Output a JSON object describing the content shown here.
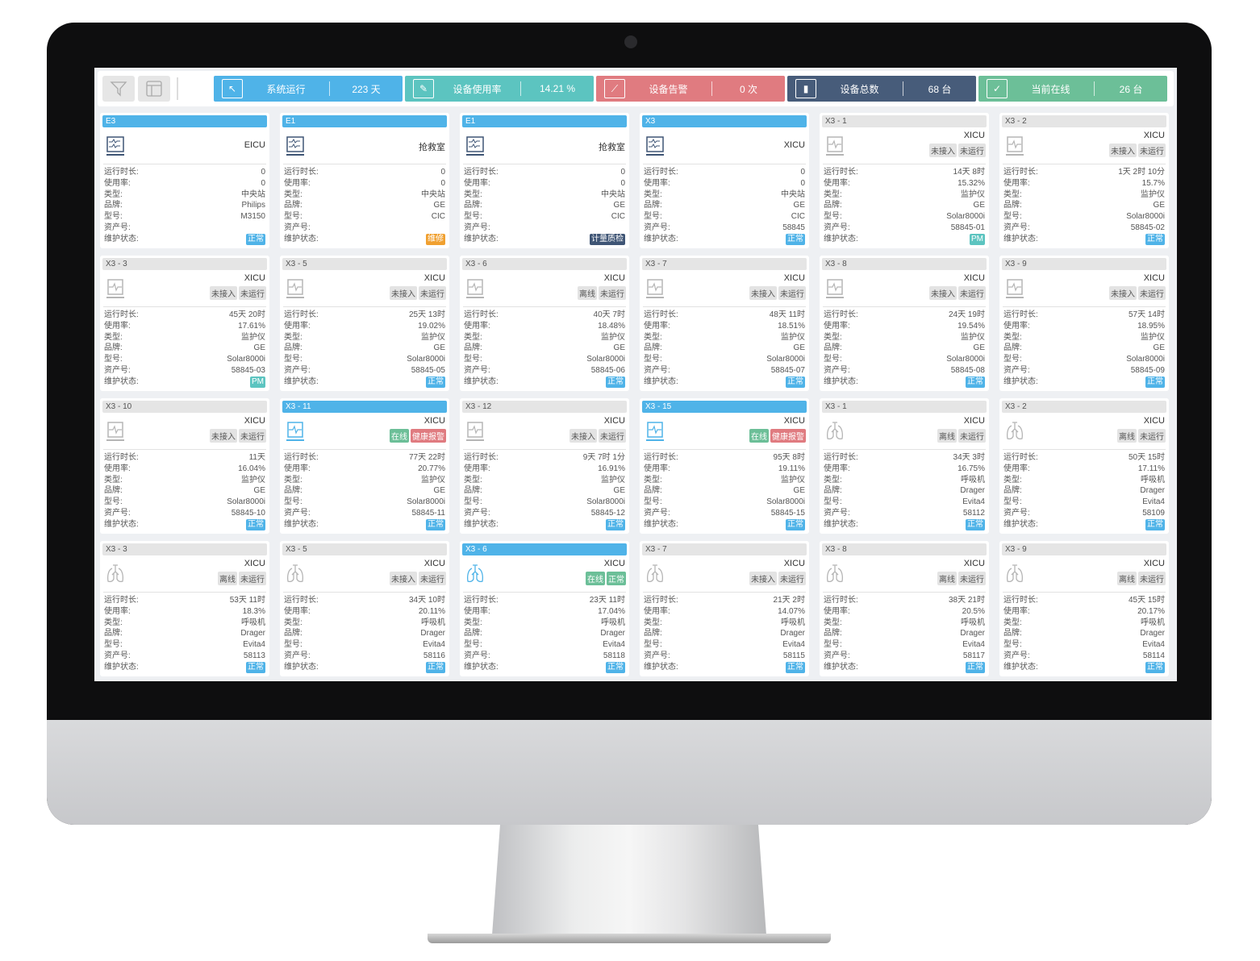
{
  "toolbar": {
    "filter_icon": "filter-icon",
    "layout_icon": "layout-icon"
  },
  "stats": [
    {
      "label": "系统运行",
      "value": "223 天",
      "color": "#4fb3e8",
      "icon": "cursor-icon"
    },
    {
      "label": "设备使用率",
      "value": "14.21 %",
      "color": "#5cc4c0",
      "icon": "edit-icon"
    },
    {
      "label": "设备告警",
      "value": "0 次",
      "color": "#e07b80",
      "icon": "alert-slash-icon"
    },
    {
      "label": "设备总数",
      "value": "68 台",
      "color": "#475c7a",
      "icon": "bar-chart-icon"
    },
    {
      "label": "当前在线",
      "value": "26 台",
      "color": "#6cbf98",
      "icon": "line-chart-icon"
    }
  ],
  "field_labels": [
    "运行时长:",
    "使用率:",
    "类型:",
    "品牌:",
    "型号:",
    "资产号:",
    "维护状态:"
  ],
  "maintenance_colors": {
    "正常": "#4fb3e8",
    "维修": "#f0a030",
    "计量质检": "#3f5575",
    "PM": "#5cc4c0"
  },
  "tag_colors": {
    "在线": "g",
    "正常": "g",
    "健康报警": "r"
  },
  "cards": [
    {
      "title": "E3",
      "active": true,
      "kind": "central",
      "location": "EICU",
      "tags": [],
      "values": [
        "0",
        "0",
        "中央站",
        "Philips",
        "M3150",
        ""
      ],
      "maintenance": "正常"
    },
    {
      "title": "E1",
      "active": true,
      "kind": "central",
      "location": "抢救室",
      "tags": [],
      "values": [
        "0",
        "0",
        "中央站",
        "GE",
        "CIC",
        ""
      ],
      "maintenance": "维修"
    },
    {
      "title": "E1",
      "active": true,
      "kind": "central",
      "location": "抢救室",
      "tags": [],
      "values": [
        "0",
        "0",
        "中央站",
        "GE",
        "CIC",
        ""
      ],
      "maintenance": "计量质检"
    },
    {
      "title": "X3",
      "active": true,
      "kind": "central",
      "location": "XICU",
      "tags": [],
      "values": [
        "0",
        "0",
        "中央站",
        "GE",
        "CIC",
        "58845"
      ],
      "maintenance": "正常"
    },
    {
      "title": "X3 - 1",
      "active": false,
      "kind": "monitor",
      "location": "XICU",
      "tags": [
        "未接入",
        "未运行"
      ],
      "values": [
        "14天 8时",
        "15.32%",
        "监护仪",
        "GE",
        "Solar8000i",
        "58845-01"
      ],
      "maintenance": "PM"
    },
    {
      "title": "X3 - 2",
      "active": false,
      "kind": "monitor",
      "location": "XICU",
      "tags": [
        "未接入",
        "未运行"
      ],
      "values": [
        "1天 2时 10分",
        "15.7%",
        "监护仪",
        "GE",
        "Solar8000i",
        "58845-02"
      ],
      "maintenance": "正常"
    },
    {
      "title": "X3 - 3",
      "active": false,
      "kind": "monitor",
      "location": "XICU",
      "tags": [
        "未接入",
        "未运行"
      ],
      "values": [
        "45天 20时",
        "17.61%",
        "监护仪",
        "GE",
        "Solar8000i",
        "58845-03"
      ],
      "maintenance": "PM"
    },
    {
      "title": "X3 - 5",
      "active": false,
      "kind": "monitor",
      "location": "XICU",
      "tags": [
        "未接入",
        "未运行"
      ],
      "values": [
        "25天 13时",
        "19.02%",
        "监护仪",
        "GE",
        "Solar8000i",
        "58845-05"
      ],
      "maintenance": "正常"
    },
    {
      "title": "X3 - 6",
      "active": false,
      "kind": "monitor",
      "location": "XICU",
      "tags": [
        "离线",
        "未运行"
      ],
      "values": [
        "40天 7时",
        "18.48%",
        "监护仪",
        "GE",
        "Solar8000i",
        "58845-06"
      ],
      "maintenance": "正常"
    },
    {
      "title": "X3 - 7",
      "active": false,
      "kind": "monitor",
      "location": "XICU",
      "tags": [
        "未接入",
        "未运行"
      ],
      "values": [
        "48天 11时",
        "18.51%",
        "监护仪",
        "GE",
        "Solar8000i",
        "58845-07"
      ],
      "maintenance": "正常"
    },
    {
      "title": "X3 - 8",
      "active": false,
      "kind": "monitor",
      "location": "XICU",
      "tags": [
        "未接入",
        "未运行"
      ],
      "values": [
        "24天 19时",
        "19.54%",
        "监护仪",
        "GE",
        "Solar8000i",
        "58845-08"
      ],
      "maintenance": "正常"
    },
    {
      "title": "X3 - 9",
      "active": false,
      "kind": "monitor",
      "location": "XICU",
      "tags": [
        "未接入",
        "未运行"
      ],
      "values": [
        "57天 14时",
        "18.95%",
        "监护仪",
        "GE",
        "Solar8000i",
        "58845-09"
      ],
      "maintenance": "正常"
    },
    {
      "title": "X3 - 10",
      "active": false,
      "kind": "monitor",
      "location": "XICU",
      "tags": [
        "未接入",
        "未运行"
      ],
      "values": [
        "11天",
        "16.04%",
        "监护仪",
        "GE",
        "Solar8000i",
        "58845-10"
      ],
      "maintenance": "正常"
    },
    {
      "title": "X3 - 11",
      "active": true,
      "kind": "monitor",
      "location": "XICU",
      "tags": [
        "在线",
        "健康报警"
      ],
      "values": [
        "77天 22时",
        "20.77%",
        "监护仪",
        "GE",
        "Solar8000i",
        "58845-11"
      ],
      "maintenance": "正常"
    },
    {
      "title": "X3 - 12",
      "active": false,
      "kind": "monitor",
      "location": "XICU",
      "tags": [
        "未接入",
        "未运行"
      ],
      "values": [
        "9天 7时 1分",
        "16.91%",
        "监护仪",
        "GE",
        "Solar8000i",
        "58845-12"
      ],
      "maintenance": "正常"
    },
    {
      "title": "X3 - 15",
      "active": true,
      "kind": "monitor",
      "location": "XICU",
      "tags": [
        "在线",
        "健康报警"
      ],
      "values": [
        "95天 8时",
        "19.11%",
        "监护仪",
        "GE",
        "Solar8000i",
        "58845-15"
      ],
      "maintenance": "正常"
    },
    {
      "title": "X3 - 1",
      "active": false,
      "kind": "vent",
      "location": "XICU",
      "tags": [
        "离线",
        "未运行"
      ],
      "values": [
        "34天 3时",
        "16.75%",
        "呼吸机",
        "Drager",
        "Evita4",
        "58112"
      ],
      "maintenance": "正常"
    },
    {
      "title": "X3 - 2",
      "active": false,
      "kind": "vent",
      "location": "XICU",
      "tags": [
        "离线",
        "未运行"
      ],
      "values": [
        "50天 15时",
        "17.11%",
        "呼吸机",
        "Drager",
        "Evita4",
        "58109"
      ],
      "maintenance": "正常"
    },
    {
      "title": "X3 - 3",
      "active": false,
      "kind": "vent",
      "location": "XICU",
      "tags": [
        "离线",
        "未运行"
      ],
      "values": [
        "53天 11时",
        "18.3%",
        "呼吸机",
        "Drager",
        "Evita4",
        "58113"
      ],
      "maintenance": "正常"
    },
    {
      "title": "X3 - 5",
      "active": false,
      "kind": "vent",
      "location": "XICU",
      "tags": [
        "未接入",
        "未运行"
      ],
      "values": [
        "34天 10时",
        "20.11%",
        "呼吸机",
        "Drager",
        "Evita4",
        "58116"
      ],
      "maintenance": "正常"
    },
    {
      "title": "X3 - 6",
      "active": true,
      "kind": "vent",
      "location": "XICU",
      "tags": [
        "在线",
        "正常"
      ],
      "values": [
        "23天 11时",
        "17.04%",
        "呼吸机",
        "Drager",
        "Evita4",
        "58118"
      ],
      "maintenance": "正常"
    },
    {
      "title": "X3 - 7",
      "active": false,
      "kind": "vent",
      "location": "XICU",
      "tags": [
        "未接入",
        "未运行"
      ],
      "values": [
        "21天 2时",
        "14.07%",
        "呼吸机",
        "Drager",
        "Evita4",
        "58115"
      ],
      "maintenance": "正常"
    },
    {
      "title": "X3 - 8",
      "active": false,
      "kind": "vent",
      "location": "XICU",
      "tags": [
        "离线",
        "未运行"
      ],
      "values": [
        "38天 21时",
        "20.5%",
        "呼吸机",
        "Drager",
        "Evita4",
        "58117"
      ],
      "maintenance": "正常"
    },
    {
      "title": "X3 - 9",
      "active": false,
      "kind": "vent",
      "location": "XICU",
      "tags": [
        "离线",
        "未运行"
      ],
      "values": [
        "45天 15时",
        "20.17%",
        "呼吸机",
        "Drager",
        "Evita4",
        "58114"
      ],
      "maintenance": "正常"
    }
  ]
}
